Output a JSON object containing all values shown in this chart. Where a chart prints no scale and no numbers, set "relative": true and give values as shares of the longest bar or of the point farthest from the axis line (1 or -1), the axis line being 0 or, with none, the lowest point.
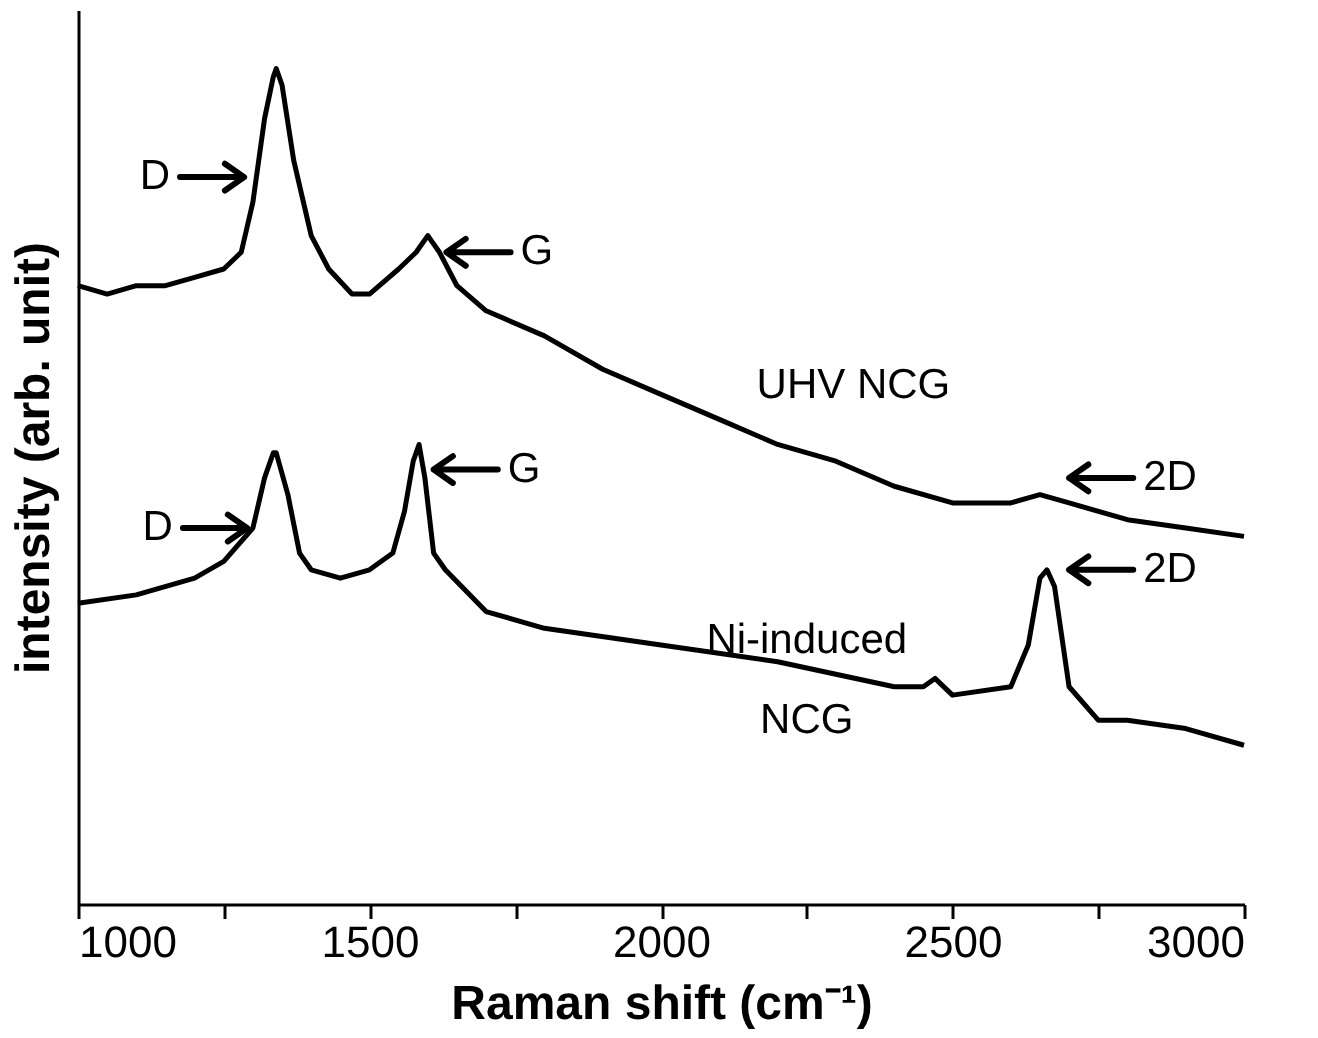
{
  "chart_data": {
    "type": "line",
    "relative": true,
    "xlabel": "Raman shift (cm⁻¹)",
    "ylabel": "intensity (arb. unit)",
    "xlim": [
      1000,
      3000
    ],
    "xticks": [
      1000,
      {
        "value": 1250,
        "label": null
      },
      1500,
      {
        "value": 1750,
        "label": null
      },
      2000,
      {
        "value": 2250,
        "label": null
      },
      2500,
      {
        "value": 2750,
        "label": null
      },
      3000
    ],
    "grid": false,
    "line_style": "solid",
    "marker": "none",
    "series": [
      {
        "color": "#000000",
        "x": [
          1000,
          1050,
          1100,
          1150,
          1200,
          1250,
          1280,
          1300,
          1320,
          1335,
          1340,
          1350,
          1370,
          1400,
          1430,
          1470,
          1500,
          1550,
          1580,
          1600,
          1620,
          1650,
          1700,
          1800,
          1900,
          2000,
          2100,
          2200,
          2300,
          2400,
          2500,
          2600,
          2650,
          2700,
          2800,
          2900,
          3000
        ],
        "values": [
          0.74,
          0.73,
          0.74,
          0.74,
          0.75,
          0.76,
          0.78,
          0.84,
          0.94,
          0.99,
          1.0,
          0.98,
          0.89,
          0.8,
          0.76,
          0.73,
          0.73,
          0.76,
          0.78,
          0.8,
          0.78,
          0.74,
          0.71,
          0.68,
          0.64,
          0.61,
          0.58,
          0.55,
          0.53,
          0.5,
          0.48,
          0.48,
          0.49,
          0.48,
          0.46,
          0.45,
          0.44
        ]
      },
      {
        "color": "#000000",
        "x": [
          1000,
          1100,
          1200,
          1250,
          1300,
          1320,
          1335,
          1340,
          1360,
          1380,
          1400,
          1450,
          1500,
          1540,
          1560,
          1575,
          1585,
          1595,
          1610,
          1630,
          1700,
          1800,
          2000,
          2200,
          2400,
          2450,
          2470,
          2500,
          2600,
          2630,
          2650,
          2662,
          2675,
          2700,
          2750,
          2800,
          2900,
          3000
        ],
        "values": [
          0.36,
          0.37,
          0.39,
          0.41,
          0.45,
          0.51,
          0.54,
          0.54,
          0.49,
          0.42,
          0.4,
          0.39,
          0.4,
          0.42,
          0.47,
          0.53,
          0.55,
          0.51,
          0.42,
          0.4,
          0.35,
          0.33,
          0.31,
          0.29,
          0.26,
          0.26,
          0.27,
          0.25,
          0.26,
          0.31,
          0.39,
          0.4,
          0.38,
          0.26,
          0.22,
          0.22,
          0.21,
          0.19
        ]
      }
    ],
    "annotations": [
      "D",
      "G",
      "2D",
      "D",
      "G",
      "2D",
      "UHV NCG",
      "Ni-induced NCG"
    ]
  }
}
